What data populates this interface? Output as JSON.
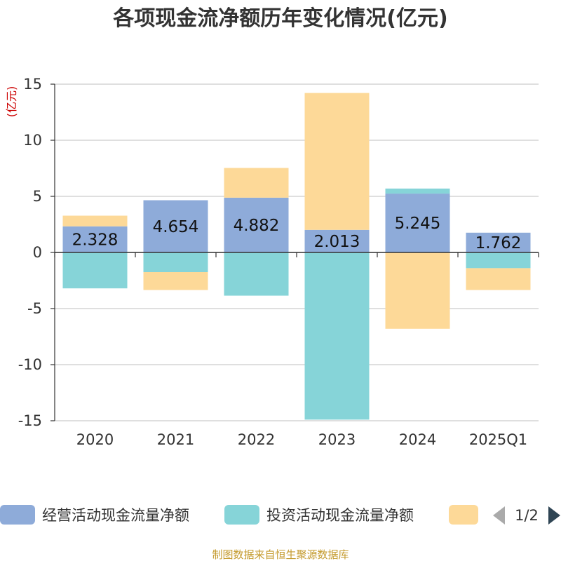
{
  "chart_data": {
    "type": "bar",
    "stacked": true,
    "title": "各项现金流净额历年变化情况(亿元)",
    "unit_label": "(亿元)",
    "categories": [
      "2020",
      "2021",
      "2022",
      "2023",
      "2024",
      "2025Q1"
    ],
    "ylim": [
      -15,
      15
    ],
    "yticks": [
      15,
      10,
      5,
      0,
      -5,
      -10,
      -15
    ],
    "grid": true,
    "series": [
      {
        "name": "经营活动现金流量净额",
        "color": "#8eabd9",
        "values": [
          2.328,
          4.654,
          4.882,
          2.013,
          5.245,
          1.762
        ],
        "labels": [
          "2.328",
          "4.654",
          "4.882",
          "2.013",
          "5.245",
          "1.762"
        ]
      },
      {
        "name": "投资活动现金流量净额",
        "color": "#86d4d8",
        "values": [
          -3.2,
          -1.75,
          -3.85,
          -14.9,
          0.45,
          -1.4
        ]
      },
      {
        "name": "",
        "color": "#fdd998",
        "values": [
          0.95,
          -1.6,
          2.65,
          12.2,
          -6.8,
          -1.95
        ]
      }
    ],
    "legend": {
      "position": "bottom",
      "page": "1/2"
    }
  },
  "footer": {
    "source": "制图数据来自恒生聚源数据库"
  }
}
